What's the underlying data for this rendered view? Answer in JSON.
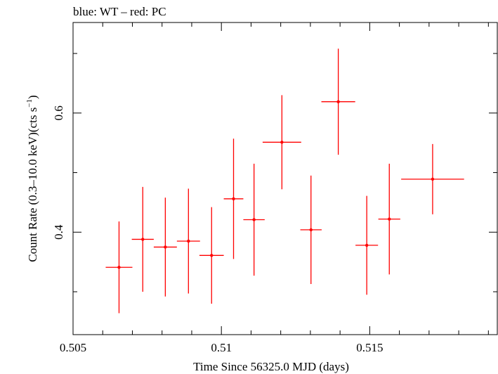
{
  "header": {
    "title": "blue: WT – red: PC"
  },
  "chart_data": {
    "type": "scatter",
    "title": "blue: WT – red: PC",
    "xlabel": "Time Since 56325.0 MJD (days)",
    "ylabel_main": "Count Rate (0.3–10.0 keV)(cts s",
    "ylabel_sup": "−1",
    "ylabel_tail": ")",
    "xlim": [
      0.505,
      0.5193
    ],
    "ylim": [
      0.228,
      0.752
    ],
    "x_ticks": [
      0.505,
      0.51,
      0.515
    ],
    "x_tick_labels": [
      "0.505",
      "0.51",
      "0.515"
    ],
    "y_ticks": [
      0.4,
      0.6
    ],
    "y_tick_labels": [
      "0.4",
      "0.6"
    ],
    "grid": false,
    "series": [
      {
        "color": "#ff0000",
        "points": [
          {
            "x": 0.50655,
            "xerr": 0.00045,
            "y": 0.341,
            "yerr": 0.077
          },
          {
            "x": 0.50735,
            "xerr": 0.00037,
            "y": 0.388,
            "yerr": 0.088
          },
          {
            "x": 0.50811,
            "xerr": 0.00039,
            "y": 0.375,
            "yerr": 0.083
          },
          {
            "x": 0.50889,
            "xerr": 0.00039,
            "y": 0.385,
            "yerr": 0.088
          },
          {
            "x": 0.50967,
            "xerr": 0.00041,
            "y": 0.361,
            "yerr": 0.081
          },
          {
            "x": 0.51041,
            "xerr": 0.00033,
            "y": 0.456,
            "yerr": 0.101
          },
          {
            "x": 0.5111,
            "xerr": 0.00036,
            "y": 0.421,
            "yerr": 0.094
          },
          {
            "x": 0.51204,
            "xerr": 0.00065,
            "y": 0.551,
            "yerr": 0.079
          },
          {
            "x": 0.51302,
            "xerr": 0.00036,
            "y": 0.404,
            "yerr": 0.091
          },
          {
            "x": 0.51394,
            "xerr": 0.00057,
            "y": 0.619,
            "yerr": 0.089
          },
          {
            "x": 0.5149,
            "xerr": 0.00038,
            "y": 0.378,
            "yerr": 0.083
          },
          {
            "x": 0.51566,
            "xerr": 0.00037,
            "y": 0.422,
            "yerr": 0.093
          },
          {
            "x": 0.51712,
            "xerr": 0.00106,
            "y": 0.489,
            "yerr": 0.059
          }
        ]
      }
    ]
  }
}
